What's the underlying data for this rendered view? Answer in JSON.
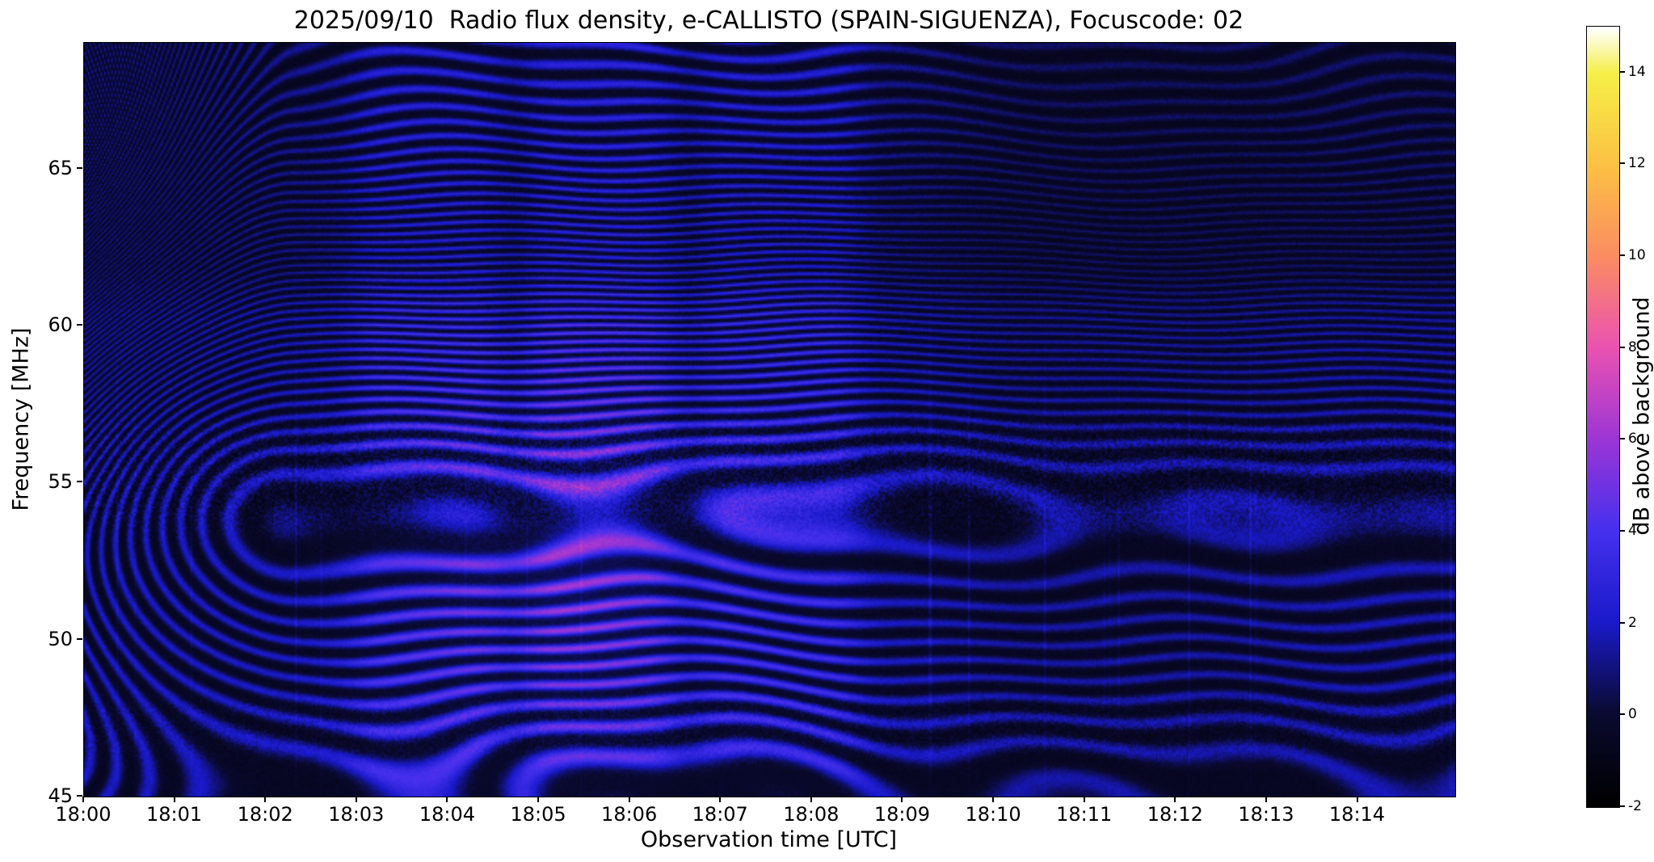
{
  "figure": {
    "background": "#ffffff"
  },
  "chart_data": {
    "type": "heatmap",
    "title": "2025/09/10  Radio flux density, e-CALLISTO (SPAIN-SIGUENZA), Focuscode: 02",
    "xlabel": "Observation time [UTC]",
    "ylabel": "Frequency [MHz]",
    "x_ticks": [
      "18:00",
      "18:01",
      "18:02",
      "18:03",
      "18:04",
      "18:05",
      "18:06",
      "18:07",
      "18:08",
      "18:09",
      "18:10",
      "18:11",
      "18:12",
      "18:13",
      "18:14"
    ],
    "x_range_minutes": [
      0,
      15.07
    ],
    "y_ticks": [
      45,
      50,
      55,
      60,
      65
    ],
    "ylim": [
      45,
      69
    ],
    "grid": false,
    "legend": "none",
    "colorbar": {
      "label": "dB above background",
      "ticks": [
        -2,
        0,
        2,
        4,
        6,
        8,
        10,
        12,
        14
      ],
      "clim": [
        -2,
        15
      ],
      "colormap": "gnuplot2-like (black-blue-magenta-orange-yellow-white)",
      "stops": [
        {
          "v": -2,
          "c": "#000000"
        },
        {
          "v": 0,
          "c": "#0a0a30"
        },
        {
          "v": 2,
          "c": "#1a1aca"
        },
        {
          "v": 4,
          "c": "#4530ee"
        },
        {
          "v": 6,
          "c": "#9c35d6"
        },
        {
          "v": 8,
          "c": "#ea52b2"
        },
        {
          "v": 10,
          "c": "#fb8c62"
        },
        {
          "v": 12,
          "c": "#fcc144"
        },
        {
          "v": 14,
          "c": "#f6ef46"
        },
        {
          "v": 15,
          "c": "#ffffff"
        }
      ]
    },
    "content_description": "Dynamic radio spectrum (spectrogram) dominated by dark blue/black background with wavy quasi-horizontal interference fringes across the whole band 45-69 MHz. Values mostly between -2 and 4 dB above background so the image stays in the black-to-blue part of the colormap. Dense slanted fringe pattern near 18:00-18:01 (upper left), brighter vertical column sections between about 18:03 and 18:08, a bright wavy fringe near 61.5 MHz, a grainy RFI noise band around 54-56 MHz, faint thin vertical streaks around 18:04-18:06, and a darker region above 61 MHz after 18:09."
  }
}
